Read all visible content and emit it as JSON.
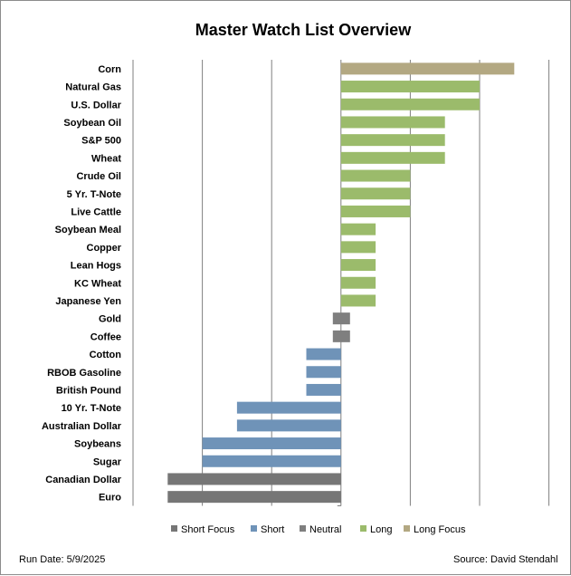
{
  "chart_data": {
    "type": "bar",
    "orientation": "horizontal",
    "title": "Master Watch List Overview",
    "categories": [
      "Corn",
      "Natural Gas",
      "U.S. Dollar",
      "Soybean Oil",
      "S&P 500",
      "Wheat",
      "Crude Oil",
      "5 Yr. T-Note",
      "Live Cattle",
      "Soybean Meal",
      "Copper",
      "Lean Hogs",
      "KC Wheat",
      "Japanese Yen",
      "Gold",
      "Coffee",
      "Cotton",
      "RBOB Gasoline",
      "British Pound",
      "10 Yr. T-Note",
      "Australian Dollar",
      "Soybeans",
      "Sugar",
      "Canadian Dollar",
      "Euro"
    ],
    "values": [
      5,
      4,
      4,
      3,
      3,
      3,
      2,
      2,
      2,
      1,
      1,
      1,
      1,
      1,
      0,
      0,
      -1,
      -1,
      -1,
      -3,
      -3,
      -4,
      -4,
      -5,
      -5
    ],
    "statuses": [
      "Long Focus",
      "Long",
      "Long",
      "Long",
      "Long",
      "Long",
      "Long",
      "Long",
      "Long",
      "Long",
      "Long",
      "Long",
      "Long",
      "Long",
      "Neutral",
      "Neutral",
      "Short",
      "Short",
      "Short",
      "Short",
      "Short",
      "Short",
      "Short",
      "Short Focus",
      "Short Focus"
    ],
    "xlim": [
      -6,
      6
    ],
    "grid": true,
    "legend_position": "bottom",
    "legend": [
      {
        "name": "Short Focus",
        "color": "#767676"
      },
      {
        "name": "Short",
        "color": "#6f93b8"
      },
      {
        "name": "Neutral",
        "color": "#7f7f7f"
      },
      {
        "name": "Long",
        "color": "#9bbb6b"
      },
      {
        "name": "Long Focus",
        "color": "#b3a882"
      }
    ]
  },
  "footer": {
    "run_date": "Run Date: 5/9/2025",
    "source": "Source: David Stendahl"
  }
}
